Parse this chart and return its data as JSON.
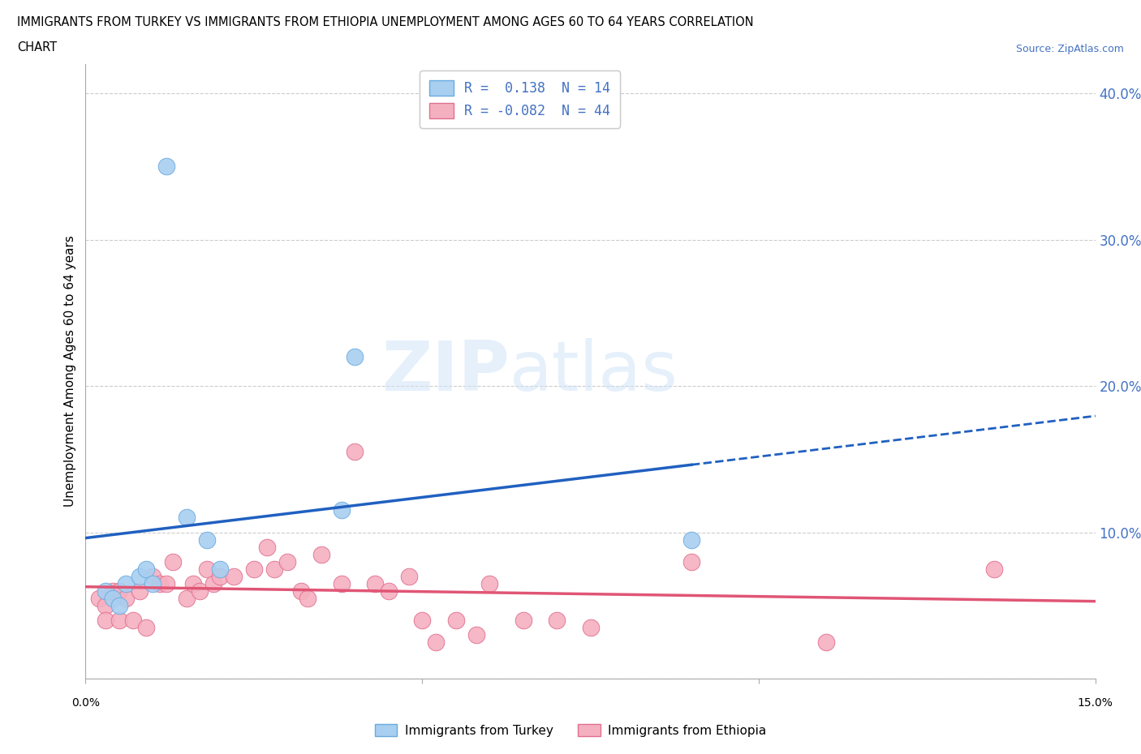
{
  "title_line1": "IMMIGRANTS FROM TURKEY VS IMMIGRANTS FROM ETHIOPIA UNEMPLOYMENT AMONG AGES 60 TO 64 YEARS CORRELATION",
  "title_line2": "CHART",
  "source": "Source: ZipAtlas.com",
  "ylabel": "Unemployment Among Ages 60 to 64 years",
  "xlim": [
    0.0,
    0.15
  ],
  "ylim": [
    0.0,
    0.42
  ],
  "yticks": [
    0.0,
    0.1,
    0.2,
    0.3,
    0.4
  ],
  "ytick_labels": [
    "",
    "10.0%",
    "20.0%",
    "30.0%",
    "40.0%"
  ],
  "turkey_color": "#A8CFF0",
  "turkey_edge_color": "#6AAAE0",
  "ethiopia_color": "#F5B0C0",
  "ethiopia_edge_color": "#E07090",
  "trend_turkey_color": "#2060C0",
  "trend_ethiopia_color": "#E05575",
  "background_color": "#FFFFFF",
  "legend_R_turkey": " 0.138",
  "legend_N_turkey": "14",
  "legend_R_ethiopia": "-0.082",
  "legend_N_ethiopia": "44",
  "turkey_x": [
    0.003,
    0.004,
    0.005,
    0.006,
    0.008,
    0.009,
    0.01,
    0.012,
    0.015,
    0.018,
    0.02,
    0.038,
    0.04,
    0.09
  ],
  "turkey_y": [
    0.06,
    0.055,
    0.05,
    0.065,
    0.07,
    0.075,
    0.065,
    0.35,
    0.11,
    0.095,
    0.075,
    0.115,
    0.22,
    0.095
  ],
  "ethiopia_x": [
    0.002,
    0.003,
    0.003,
    0.004,
    0.005,
    0.005,
    0.006,
    0.007,
    0.008,
    0.009,
    0.01,
    0.011,
    0.012,
    0.013,
    0.015,
    0.016,
    0.017,
    0.018,
    0.019,
    0.02,
    0.022,
    0.025,
    0.027,
    0.028,
    0.03,
    0.032,
    0.033,
    0.035,
    0.038,
    0.04,
    0.043,
    0.045,
    0.048,
    0.05,
    0.052,
    0.055,
    0.058,
    0.06,
    0.065,
    0.07,
    0.075,
    0.09,
    0.11,
    0.135
  ],
  "ethiopia_y": [
    0.055,
    0.05,
    0.04,
    0.06,
    0.06,
    0.04,
    0.055,
    0.04,
    0.06,
    0.035,
    0.07,
    0.065,
    0.065,
    0.08,
    0.055,
    0.065,
    0.06,
    0.075,
    0.065,
    0.07,
    0.07,
    0.075,
    0.09,
    0.075,
    0.08,
    0.06,
    0.055,
    0.085,
    0.065,
    0.155,
    0.065,
    0.06,
    0.07,
    0.04,
    0.025,
    0.04,
    0.03,
    0.065,
    0.04,
    0.04,
    0.035,
    0.08,
    0.025,
    0.075
  ]
}
